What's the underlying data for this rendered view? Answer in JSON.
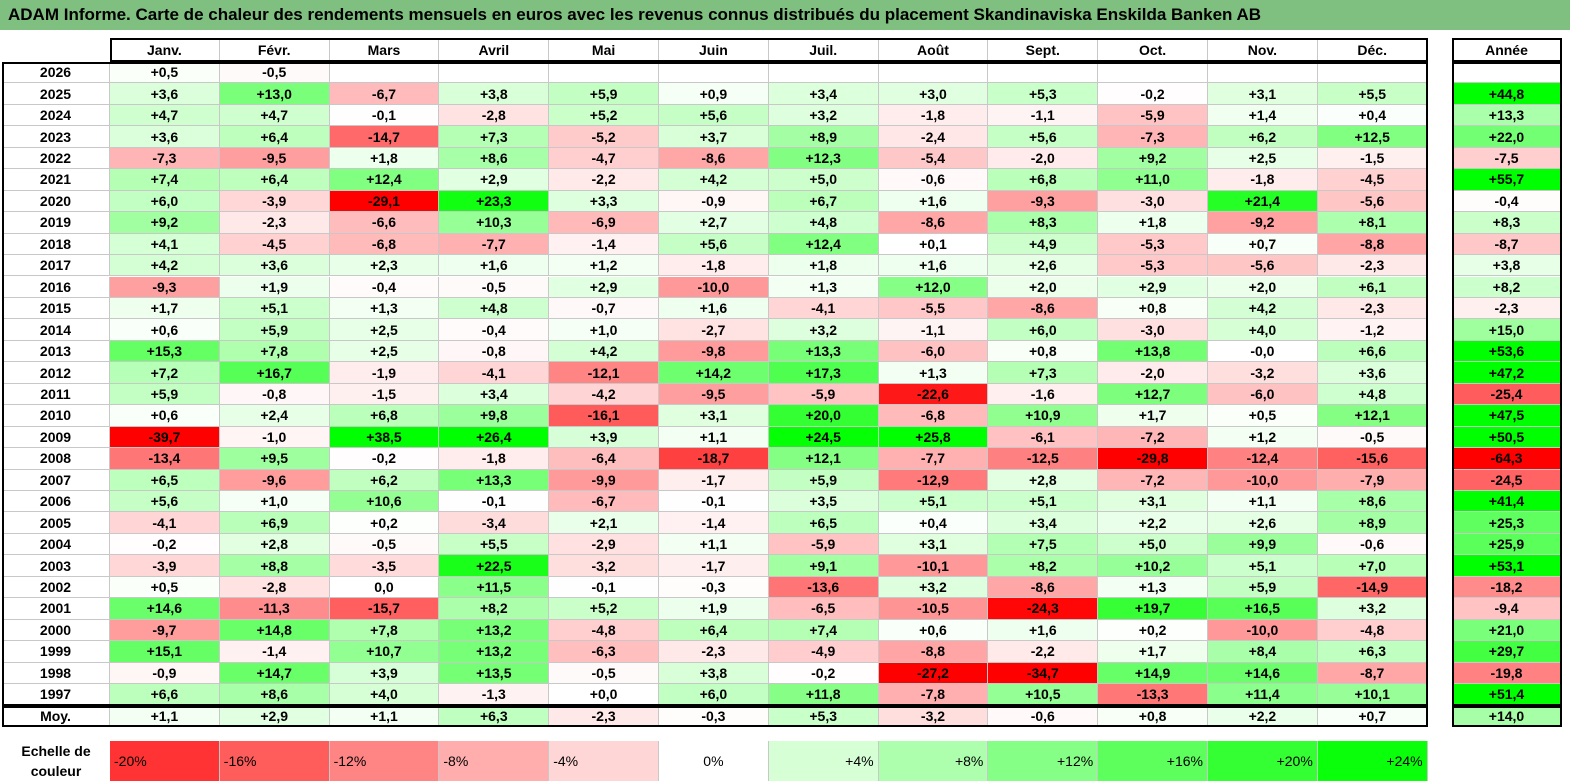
{
  "title": "ADAM Informe. Carte de chaleur des rendements mensuels en euros avec les revenus connus distribués du placement Skandinaviska Enskilda Banken AB",
  "chart_data": {
    "type": "heatmap",
    "columns": [
      "Janv.",
      "Févr.",
      "Mars",
      "Avril",
      "Mai",
      "Juin",
      "Juil.",
      "Août",
      "Sept.",
      "Oct.",
      "Nov.",
      "Déc."
    ],
    "year_column_label": "Année",
    "rows": [
      {
        "label": "2026",
        "months": [
          "+0,5",
          "-0,5",
          "",
          "",
          "",
          "",
          "",
          "",
          "",
          "",
          "",
          ""
        ],
        "year": ""
      },
      {
        "label": "2025",
        "months": [
          "+3,6",
          "+13,0",
          "-6,7",
          "+3,8",
          "+5,9",
          "+0,9",
          "+3,4",
          "+3,0",
          "+5,3",
          "-0,2",
          "+3,1",
          "+5,5"
        ],
        "year": "+44,8"
      },
      {
        "label": "2024",
        "months": [
          "+4,7",
          "+4,7",
          "-0,1",
          "-2,8",
          "+5,2",
          "+5,6",
          "+3,2",
          "-1,8",
          "-1,1",
          "-5,9",
          "+1,4",
          "+0,4"
        ],
        "year": "+13,3"
      },
      {
        "label": "2023",
        "months": [
          "+3,6",
          "+6,4",
          "-14,7",
          "+7,3",
          "-5,2",
          "+3,7",
          "+8,9",
          "-2,4",
          "+5,6",
          "-7,3",
          "+6,2",
          "+12,5"
        ],
        "year": "+22,0"
      },
      {
        "label": "2022",
        "months": [
          "-7,3",
          "-9,5",
          "+1,8",
          "+8,6",
          "-4,7",
          "-8,6",
          "+12,3",
          "-5,4",
          "-2,0",
          "+9,2",
          "+2,5",
          "-1,5"
        ],
        "year": "-7,5"
      },
      {
        "label": "2021",
        "months": [
          "+7,4",
          "+6,4",
          "+12,4",
          "+2,9",
          "-2,2",
          "+4,2",
          "+5,0",
          "-0,6",
          "+6,8",
          "+11,0",
          "-1,8",
          "-4,5"
        ],
        "year": "+55,7"
      },
      {
        "label": "2020",
        "months": [
          "+6,0",
          "-3,9",
          "-29,1",
          "+23,3",
          "+3,3",
          "-0,9",
          "+6,7",
          "+1,6",
          "-9,3",
          "-3,0",
          "+21,4",
          "-5,6"
        ],
        "year": "-0,4"
      },
      {
        "label": "2019",
        "months": [
          "+9,2",
          "-2,3",
          "-6,6",
          "+10,3",
          "-6,9",
          "+2,7",
          "+4,8",
          "-8,6",
          "+8,3",
          "+1,8",
          "-9,2",
          "+8,1"
        ],
        "year": "+8,3"
      },
      {
        "label": "2018",
        "months": [
          "+4,1",
          "-4,5",
          "-6,8",
          "-7,7",
          "-1,4",
          "+5,6",
          "+12,4",
          "+0,1",
          "+4,9",
          "-5,3",
          "+0,7",
          "-8,8"
        ],
        "year": "-8,7"
      },
      {
        "label": "2017",
        "months": [
          "+4,2",
          "+3,6",
          "+2,3",
          "+1,6",
          "+1,2",
          "-1,8",
          "+1,8",
          "+1,6",
          "+2,6",
          "-5,3",
          "-5,6",
          "-2,3"
        ],
        "year": "+3,8"
      },
      {
        "label": "2016",
        "months": [
          "-9,3",
          "+1,9",
          "-0,4",
          "-0,5",
          "+2,9",
          "-10,0",
          "+1,3",
          "+12,0",
          "+2,0",
          "+2,9",
          "+2,0",
          "+6,1"
        ],
        "year": "+8,2"
      },
      {
        "label": "2015",
        "months": [
          "+1,7",
          "+5,1",
          "+1,3",
          "+4,8",
          "-0,7",
          "+1,6",
          "-4,1",
          "-5,5",
          "-8,6",
          "+0,8",
          "+4,2",
          "-2,3"
        ],
        "year": "-2,3"
      },
      {
        "label": "2014",
        "months": [
          "+0,6",
          "+5,9",
          "+2,5",
          "-0,4",
          "+1,0",
          "-2,7",
          "+3,2",
          "-1,1",
          "+6,0",
          "-3,0",
          "+4,0",
          "-1,2"
        ],
        "year": "+15,0"
      },
      {
        "label": "2013",
        "months": [
          "+15,3",
          "+7,8",
          "+2,5",
          "-0,8",
          "+4,2",
          "-9,8",
          "+13,3",
          "-6,0",
          "+0,8",
          "+13,8",
          "-0,0",
          "+6,6"
        ],
        "year": "+53,6"
      },
      {
        "label": "2012",
        "months": [
          "+7,2",
          "+16,7",
          "-1,9",
          "-4,1",
          "-12,1",
          "+14,2",
          "+17,3",
          "+1,3",
          "+7,3",
          "-2,0",
          "-3,2",
          "+3,6"
        ],
        "year": "+47,2"
      },
      {
        "label": "2011",
        "months": [
          "+5,9",
          "-0,8",
          "-1,5",
          "+3,4",
          "-4,2",
          "-9,5",
          "-5,9",
          "-22,6",
          "-1,6",
          "+12,7",
          "-6,0",
          "+4,8"
        ],
        "year": "-25,4"
      },
      {
        "label": "2010",
        "months": [
          "+0,6",
          "+2,4",
          "+6,8",
          "+9,8",
          "-16,1",
          "+3,1",
          "+20,0",
          "-6,8",
          "+10,9",
          "+1,7",
          "+0,5",
          "+12,1"
        ],
        "year": "+47,5"
      },
      {
        "label": "2009",
        "months": [
          "-39,7",
          "-1,0",
          "+38,5",
          "+26,4",
          "+3,9",
          "+1,1",
          "+24,5",
          "+25,8",
          "-6,1",
          "-7,2",
          "+1,2",
          "-0,5"
        ],
        "year": "+50,5"
      },
      {
        "label": "2008",
        "months": [
          "-13,4",
          "+9,5",
          "-0,2",
          "-1,8",
          "-6,4",
          "-18,7",
          "+12,1",
          "-7,7",
          "-12,5",
          "-29,8",
          "-12,4",
          "-15,6"
        ],
        "year": "-64,3"
      },
      {
        "label": "2007",
        "months": [
          "+6,5",
          "-9,6",
          "+6,2",
          "+13,3",
          "-9,9",
          "-1,7",
          "+5,9",
          "-12,9",
          "+2,8",
          "-7,2",
          "-10,0",
          "-7,9"
        ],
        "year": "-24,5"
      },
      {
        "label": "2006",
        "months": [
          "+5,6",
          "+1,0",
          "+10,6",
          "-0,1",
          "-6,7",
          "-0,1",
          "+3,5",
          "+5,1",
          "+5,1",
          "+3,1",
          "+1,1",
          "+8,6"
        ],
        "year": "+41,4"
      },
      {
        "label": "2005",
        "months": [
          "-4,1",
          "+6,9",
          "+0,2",
          "-3,4",
          "+2,1",
          "-1,4",
          "+6,5",
          "+0,4",
          "+3,4",
          "+2,2",
          "+2,6",
          "+8,9"
        ],
        "year": "+25,3"
      },
      {
        "label": "2004",
        "months": [
          "-0,2",
          "+2,8",
          "-0,5",
          "+5,5",
          "-2,9",
          "+1,1",
          "-5,9",
          "+3,1",
          "+7,5",
          "+5,0",
          "+9,9",
          "-0,6"
        ],
        "year": "+25,9"
      },
      {
        "label": "2003",
        "months": [
          "-3,9",
          "+8,8",
          "-3,5",
          "+22,5",
          "-3,2",
          "-1,7",
          "+9,1",
          "-10,1",
          "+8,2",
          "+10,2",
          "+5,1",
          "+7,0"
        ],
        "year": "+53,1"
      },
      {
        "label": "2002",
        "months": [
          "+0,5",
          "-2,8",
          "0,0",
          "+11,5",
          "-0,1",
          "-0,3",
          "-13,6",
          "+3,2",
          "-8,6",
          "+1,3",
          "+5,9",
          "-14,9"
        ],
        "year": "-18,2"
      },
      {
        "label": "2001",
        "months": [
          "+14,6",
          "-11,3",
          "-15,7",
          "+8,2",
          "+5,2",
          "+1,9",
          "-6,5",
          "-10,5",
          "-24,3",
          "+19,7",
          "+16,5",
          "+3,2"
        ],
        "year": "-9,4"
      },
      {
        "label": "2000",
        "months": [
          "-9,7",
          "+14,8",
          "+7,8",
          "+13,2",
          "-4,8",
          "+6,4",
          "+7,4",
          "+0,6",
          "+1,6",
          "+0,2",
          "-10,0",
          "-4,8"
        ],
        "year": "+21,0"
      },
      {
        "label": "1999",
        "months": [
          "+15,1",
          "-1,4",
          "+10,7",
          "+13,2",
          "-6,3",
          "-2,3",
          "-4,9",
          "-8,8",
          "-2,2",
          "+1,7",
          "+8,4",
          "+6,3"
        ],
        "year": "+29,7"
      },
      {
        "label": "1998",
        "months": [
          "-0,9",
          "+14,7",
          "+3,9",
          "+13,5",
          "-0,5",
          "+3,8",
          "-0,2",
          "-27,2",
          "-34,7",
          "+14,9",
          "+14,6",
          "-8,7"
        ],
        "year": "-19,8"
      },
      {
        "label": "1997",
        "months": [
          "+6,6",
          "+8,6",
          "+4,0",
          "-1,3",
          "+0,0",
          "+6,0",
          "+11,8",
          "-7,8",
          "+10,5",
          "-13,3",
          "+11,4",
          "+10,1"
        ],
        "year": "+51,4"
      }
    ],
    "average": {
      "label": "Moy.",
      "months": [
        "+1,1",
        "+2,9",
        "+1,1",
        "+6,3",
        "-2,3",
        "-0,3",
        "+5,3",
        "-3,2",
        "-0,6",
        "+0,8",
        "+2,2",
        "+0,7"
      ],
      "year": "+14,0"
    },
    "scale": {
      "label": "Echelle de couleur",
      "steps": [
        {
          "text": "-20%",
          "value": -20,
          "align": "left"
        },
        {
          "text": "-16%",
          "value": -16,
          "align": "left"
        },
        {
          "text": "-12%",
          "value": -12,
          "align": "left"
        },
        {
          "text": "-8%",
          "value": -8,
          "align": "left"
        },
        {
          "text": "-4%",
          "value": -4,
          "align": "left"
        },
        {
          "text": "0%",
          "value": 0,
          "align": "center"
        },
        {
          "text": "+4%",
          "value": 4,
          "align": "right"
        },
        {
          "text": "+8%",
          "value": 8,
          "align": "right"
        },
        {
          "text": "+12%",
          "value": 12,
          "align": "right"
        },
        {
          "text": "+16%",
          "value": 16,
          "align": "right"
        },
        {
          "text": "+20%",
          "value": 20,
          "align": "right"
        },
        {
          "text": "+24%",
          "value": 24,
          "align": "right"
        }
      ]
    },
    "colors": {
      "negative": "#ff0000",
      "neutral": "#ffffff",
      "positive": "#00ff00",
      "title_bar": "#7fbf7f"
    }
  }
}
